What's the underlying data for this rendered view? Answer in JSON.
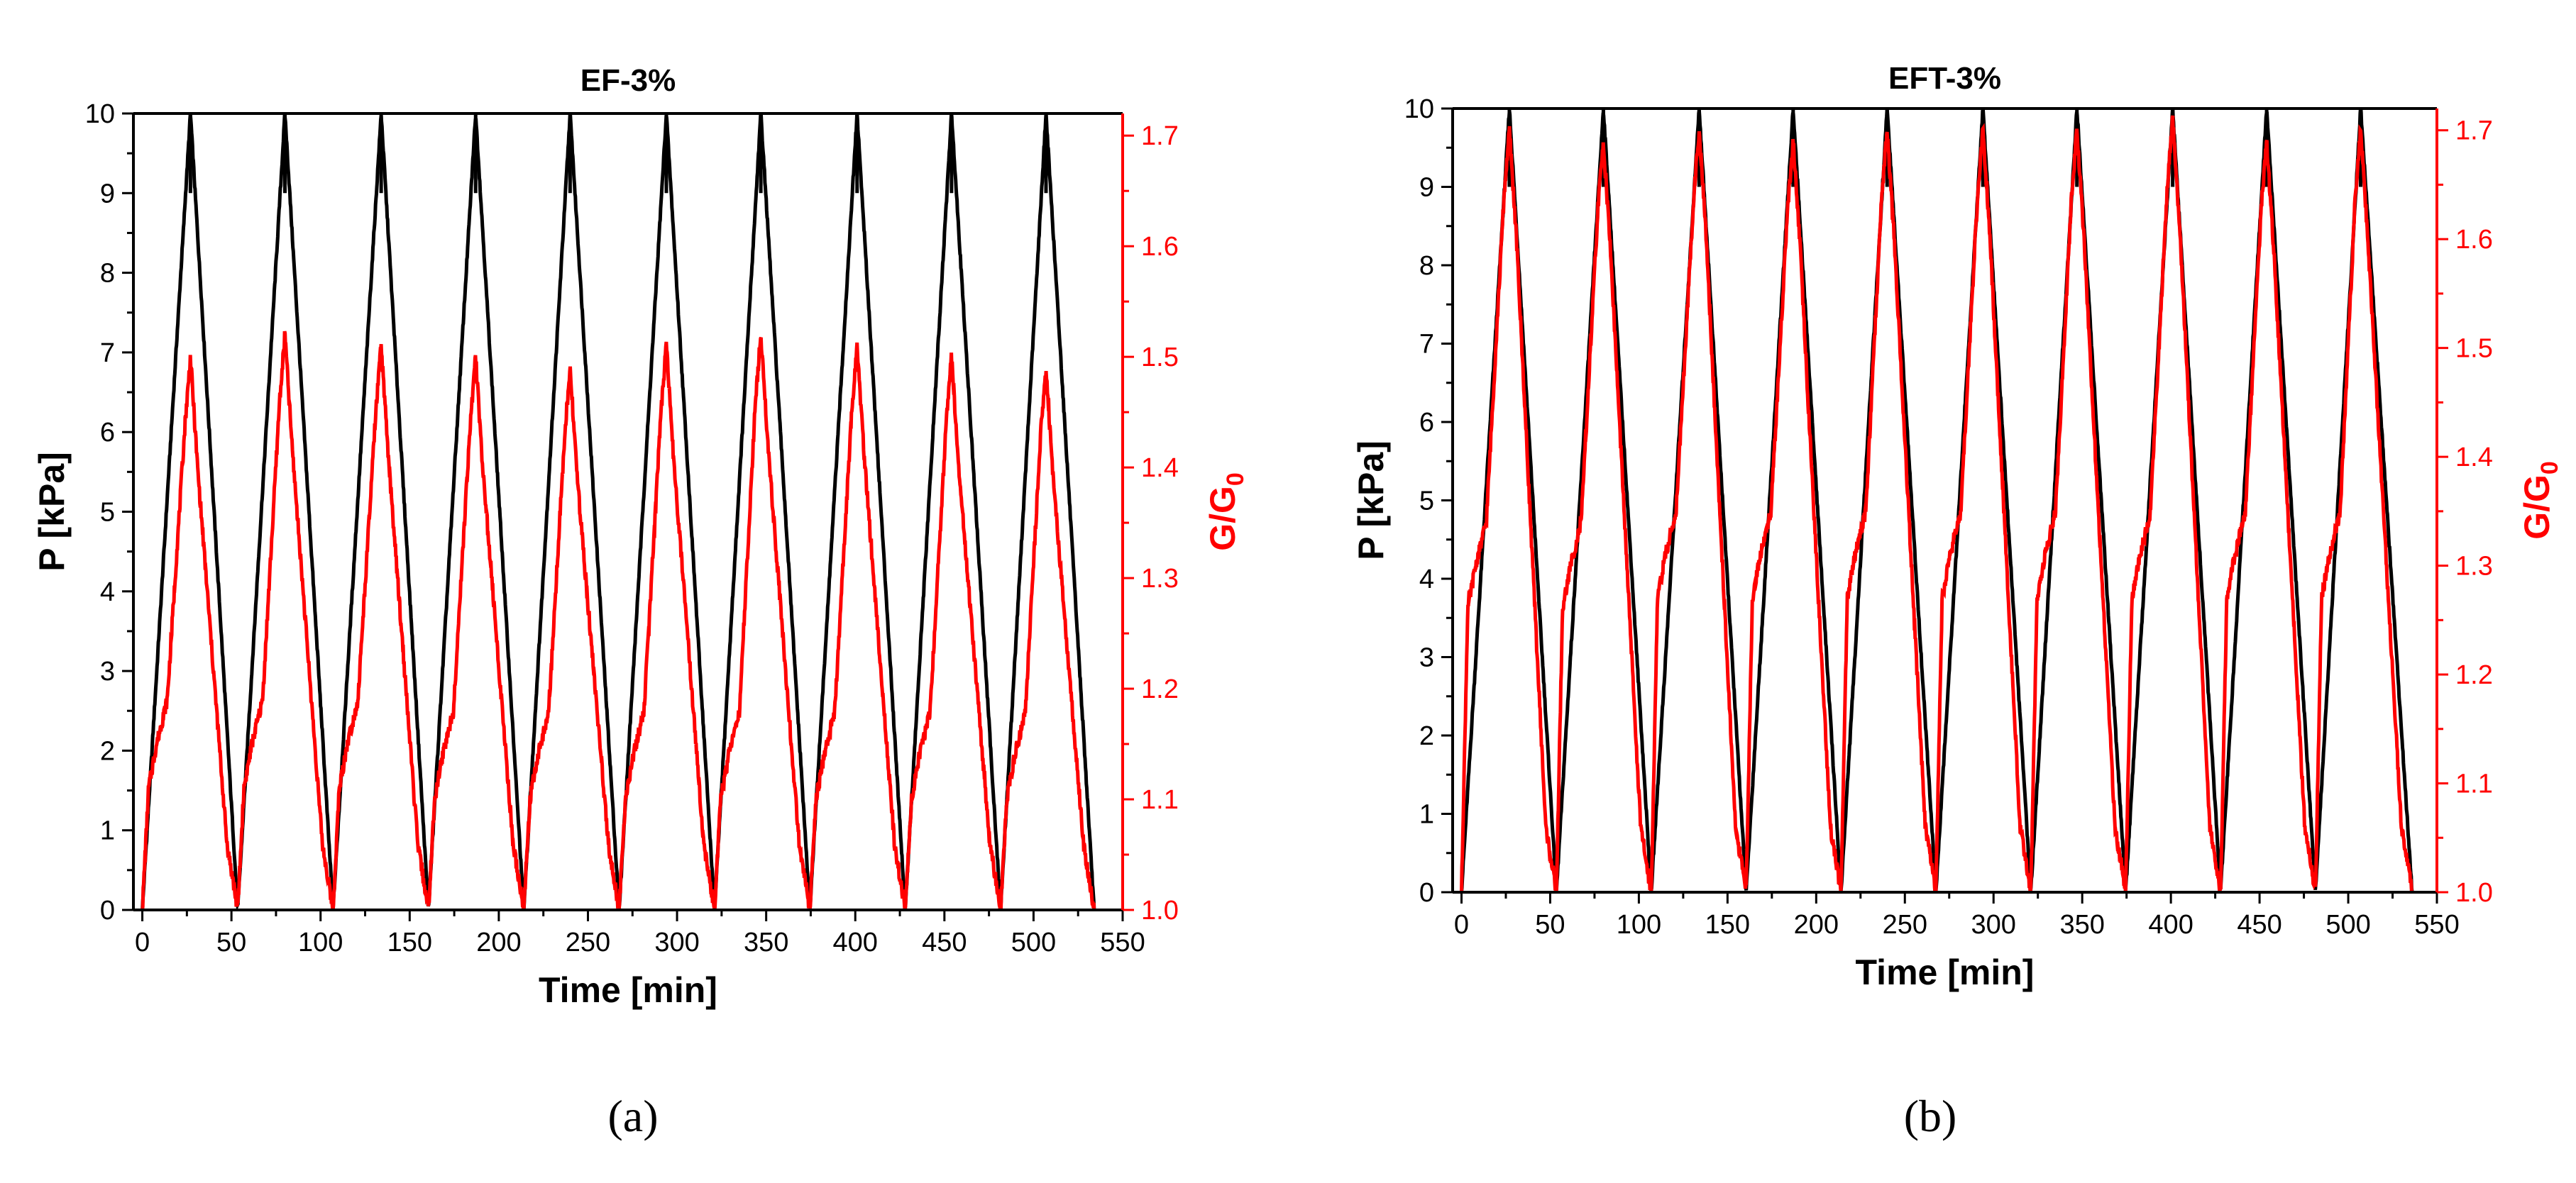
{
  "chart_data": [
    {
      "type": "line",
      "title": "EF-3%",
      "caption": "(a)",
      "xlabel": "Time [min]",
      "ylabel": "P [kPa]",
      "y2label_main": "G/G",
      "y2label_sub": "0",
      "xlim": [
        -5,
        550
      ],
      "ylim": [
        0,
        10
      ],
      "y2lim": [
        1.0,
        1.72
      ],
      "xticks": [
        0,
        50,
        100,
        150,
        200,
        250,
        300,
        350,
        400,
        450,
        500,
        550
      ],
      "yticks": [
        0,
        1,
        2,
        3,
        4,
        5,
        6,
        7,
        8,
        9,
        10
      ],
      "y2ticks": [
        1.0,
        1.1,
        1.2,
        1.3,
        1.4,
        1.5,
        1.6,
        1.7
      ],
      "series": [
        {
          "name": "P",
          "axis": "left",
          "color": "#000000",
          "cycle_start": [
            0,
            53.5,
            107,
            160.5,
            214,
            267.5,
            321,
            374.5,
            428,
            481.5
          ],
          "cycle_peak_time": [
            27,
            80,
            134,
            187,
            240,
            294,
            347,
            401,
            454,
            507
          ],
          "cycle_end": [
            53.5,
            107,
            160.5,
            214,
            267.5,
            321,
            374.5,
            428,
            481.5,
            534
          ],
          "peak_values": [
            10,
            10,
            10,
            10,
            10,
            10,
            10,
            10,
            10,
            10
          ],
          "min_value": 0
        },
        {
          "name": "G/G0",
          "axis": "right",
          "color": "#ff0000",
          "cycle_peak_time": [
            27,
            80,
            134,
            187,
            240,
            294,
            347,
            401,
            454,
            507
          ],
          "peak_values": [
            1.5,
            1.52,
            1.51,
            1.5,
            1.49,
            1.51,
            1.52,
            1.51,
            1.5,
            1.49
          ],
          "plateau_values": [
            1.15,
            1.15,
            1.15,
            1.14,
            1.14,
            1.14,
            1.14,
            1.14,
            1.14,
            1.14
          ],
          "min_values": [
            1.0,
            1.0,
            1.0,
            1.0,
            1.0,
            1.0,
            1.0,
            1.0,
            1.0,
            1.0,
            1.0
          ]
        }
      ]
    },
    {
      "type": "line",
      "title": "EFT-3%",
      "caption": "(b)",
      "xlabel": "Time [min]",
      "ylabel": "P [kPa]",
      "y2label_main": "G/G",
      "y2label_sub": "0",
      "xlim": [
        -5,
        550
      ],
      "ylim": [
        0,
        10
      ],
      "y2lim": [
        1.0,
        1.72
      ],
      "xticks": [
        0,
        50,
        100,
        150,
        200,
        250,
        300,
        350,
        400,
        450,
        500,
        550
      ],
      "yticks": [
        0,
        1,
        2,
        3,
        4,
        5,
        6,
        7,
        8,
        9,
        10
      ],
      "y2ticks": [
        1.0,
        1.1,
        1.2,
        1.3,
        1.4,
        1.5,
        1.6,
        1.7
      ],
      "series": [
        {
          "name": "P",
          "axis": "left",
          "color": "#000000",
          "cycle_start": [
            0,
            53.5,
            107,
            160.5,
            214,
            267.5,
            321,
            374.5,
            428,
            481.5
          ],
          "cycle_peak_time": [
            27,
            80,
            134,
            187,
            240,
            294,
            347,
            401,
            454,
            507
          ],
          "cycle_end": [
            53.5,
            107,
            160.5,
            214,
            267.5,
            321,
            374.5,
            428,
            481.5,
            536
          ],
          "peak_values": [
            10,
            10,
            10,
            10,
            10,
            10,
            10,
            10,
            10,
            10
          ],
          "min_value": 0
        },
        {
          "name": "G/G0",
          "axis": "right",
          "color": "#ff0000",
          "cycle_peak_time": [
            27,
            80,
            134,
            187,
            240,
            294,
            347,
            401,
            454,
            507
          ],
          "peak_values": [
            1.7,
            1.69,
            1.7,
            1.69,
            1.7,
            1.7,
            1.7,
            1.71,
            1.69,
            1.7
          ],
          "plateau_values": [
            1.3,
            1.3,
            1.31,
            1.31,
            1.31,
            1.31,
            1.31,
            1.31,
            1.31,
            1.31
          ],
          "min_values": [
            1.0,
            1.0,
            1.0,
            1.0,
            1.0,
            1.0,
            1.0,
            1.0,
            1.0,
            1.0,
            1.0
          ]
        }
      ]
    }
  ]
}
